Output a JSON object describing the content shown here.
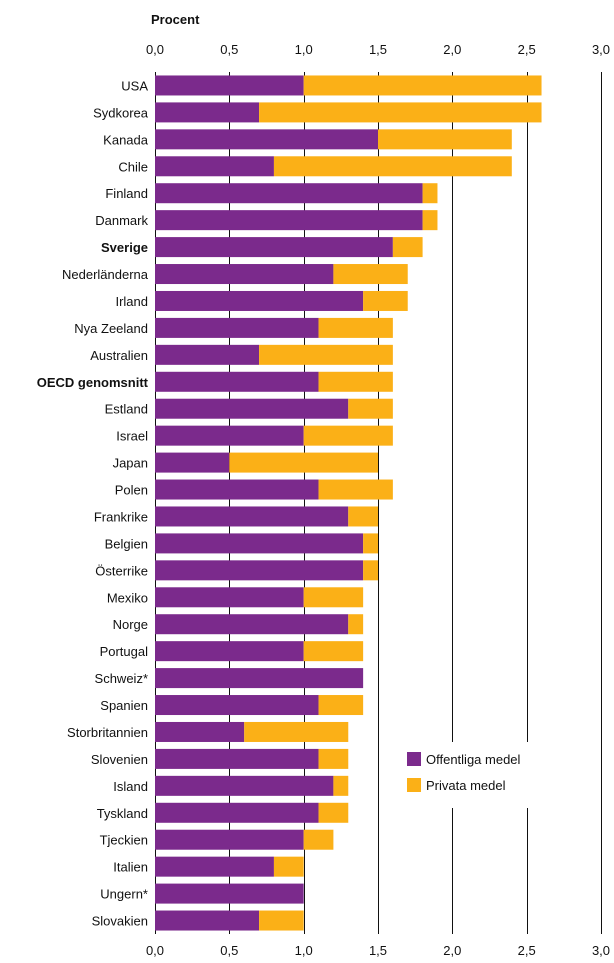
{
  "chart_data": {
    "type": "bar",
    "orientation": "horizontal",
    "stacked": true,
    "unit_label": "Procent",
    "xlim": [
      0,
      3.0
    ],
    "ticks": [
      0,
      0.5,
      1.0,
      1.5,
      2.0,
      2.5,
      3.0
    ],
    "tick_labels": [
      "0,0",
      "0,5",
      "1,0",
      "1,5",
      "2,0",
      "2,5",
      "3,0"
    ],
    "grid": "vertical",
    "categories": [
      "USA",
      "Sydkorea",
      "Kanada",
      "Chile",
      "Finland",
      "Danmark",
      "Sverige",
      "Nederländerna",
      "Irland",
      "Nya Zeeland",
      "Australien",
      "OECD genomsnitt",
      "Estland",
      "Israel",
      "Japan",
      "Polen",
      "Frankrike",
      "Belgien",
      "Österrike",
      "Mexiko",
      "Norge",
      "Portugal",
      "Schweiz*",
      "Spanien",
      "Storbritannien",
      "Slovenien",
      "Island",
      "Tyskland",
      "Tjeckien",
      "Italien",
      "Ungern*",
      "Slovakien"
    ],
    "bold_categories": [
      "Sverige",
      "OECD genomsnitt"
    ],
    "series": [
      {
        "name": "Offentliga medel",
        "color": "#7b2a8c",
        "values": [
          1.0,
          0.7,
          1.5,
          0.8,
          1.8,
          1.8,
          1.6,
          1.2,
          1.4,
          1.1,
          0.7,
          1.1,
          1.3,
          1.0,
          0.5,
          1.1,
          1.3,
          1.4,
          1.4,
          1.0,
          1.3,
          1.0,
          1.4,
          1.1,
          0.6,
          1.1,
          1.2,
          1.1,
          1.0,
          0.8,
          1.0,
          0.7
        ]
      },
      {
        "name": "Privata medel",
        "color": "#fbb017",
        "values": [
          1.6,
          1.9,
          0.9,
          1.6,
          0.1,
          0.1,
          0.2,
          0.5,
          0.3,
          0.5,
          0.9,
          0.5,
          0.3,
          0.6,
          1.0,
          0.5,
          0.2,
          0.1,
          0.1,
          0.4,
          0.1,
          0.4,
          0.0,
          0.3,
          0.7,
          0.2,
          0.1,
          0.2,
          0.2,
          0.2,
          0.0,
          0.3
        ]
      }
    ],
    "legend_position": "bottom-right"
  }
}
